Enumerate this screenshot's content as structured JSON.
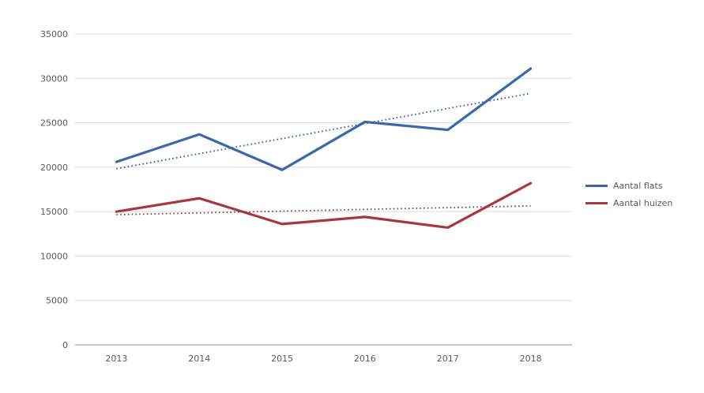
{
  "chart_data": {
    "type": "line",
    "title": "",
    "categories": [
      "2013",
      "2014",
      "2015",
      "2016",
      "2017",
      "2018"
    ],
    "series": [
      {
        "name": "Aantal flats",
        "color": "#3A68A8",
        "trend_color": "#2F5A94",
        "values": [
          20600,
          23700,
          19700,
          25100,
          24200,
          31100
        ],
        "trendline": "linear-dotted"
      },
      {
        "name": "Aantal huizen",
        "color": "#A8363E",
        "trend_color": "#96323A",
        "values": [
          15000,
          16500,
          13600,
          14400,
          13200,
          18200
        ],
        "trendline": "linear-dotted"
      }
    ],
    "xlabel": "",
    "ylabel": "",
    "ylim": [
      0,
      35000
    ],
    "ytick_step": 5000,
    "yticks": [
      0,
      5000,
      10000,
      15000,
      20000,
      25000,
      30000,
      35000
    ],
    "grid": true,
    "gridline_color": "#D9D9D9",
    "axis_line_color": "#A6A6A6",
    "tick_label_color": "#595959",
    "legend_position": "right"
  }
}
